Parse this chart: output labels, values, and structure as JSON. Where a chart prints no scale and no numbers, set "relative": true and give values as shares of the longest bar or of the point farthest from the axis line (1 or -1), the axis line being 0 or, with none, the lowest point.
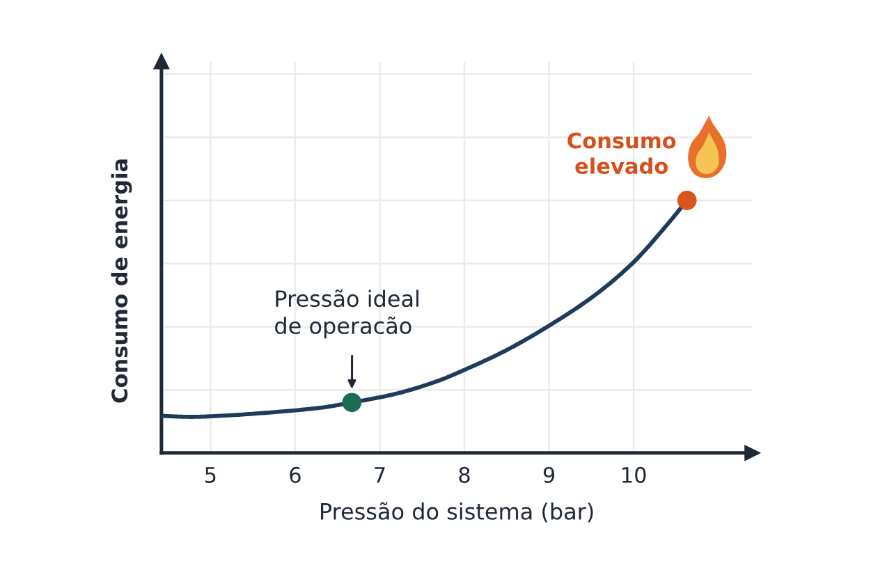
{
  "chart_data": {
    "type": "line",
    "xlabel": "Pressão do sistema (bar)",
    "ylabel": "Consumo de energia",
    "annotations": [
      {
        "text": "Pressão ideal\nde operacão",
        "x": 6.67,
        "y": 0.2
      },
      {
        "text": "Consumo\nelevado",
        "x": 10.63,
        "y": 1.0
      }
    ],
    "relative": true,
    "xlim": [
      4.42,
      11.4
    ],
    "xticks": [
      5,
      6,
      7,
      8,
      9,
      10
    ],
    "grid": true,
    "line_style": "solid",
    "series": [
      {
        "color": "#1f3b5c",
        "x": [
          4.42,
          4.77,
          5.21,
          5.76,
          6.32,
          6.67,
          7.16,
          7.7,
          8.0,
          8.49,
          9.0,
          9.55,
          10.0,
          10.37,
          10.63
        ],
        "values": [
          0.147,
          0.143,
          0.149,
          0.162,
          0.18,
          0.2,
          0.232,
          0.287,
          0.329,
          0.406,
          0.504,
          0.627,
          0.756,
          0.894,
          1.0
        ]
      },
      {
        "type": "scatter",
        "color": "#1e6b55",
        "x": [
          6.67
        ],
        "values": [
          0.2
        ]
      },
      {
        "type": "scatter",
        "color": "#d9541e",
        "x": [
          10.63
        ],
        "values": [
          1.0
        ]
      }
    ]
  }
}
